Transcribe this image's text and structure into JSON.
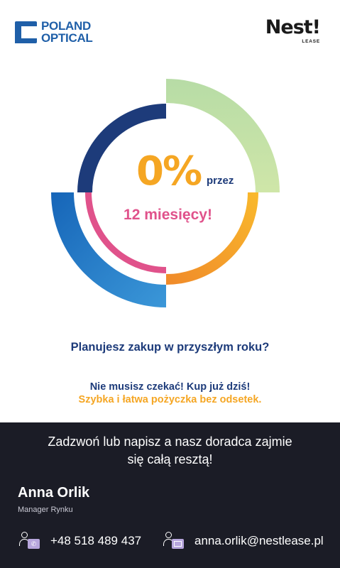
{
  "brand_left": {
    "line1": "POLAND",
    "line2": "OPTICAL",
    "color": "#1f5fa8"
  },
  "brand_right": {
    "name": "Nest!",
    "sub": "LEASE"
  },
  "promo": {
    "percent": "0%",
    "through": "przez",
    "period": "12 miesięcy!",
    "ring_colors": {
      "navy": "#1d3b7a",
      "green": "#c4e1a3",
      "blue": "#2a7fc6",
      "orange": "#f5a623",
      "pink": "#e0528b"
    }
  },
  "question": "Planujesz zakup w przyszłym roku?",
  "tagline_1": "Nie musisz czekać! Kup już dziś!",
  "tagline_2": "Szybka i łatwa pożyczka bez odsetek.",
  "footer": {
    "cta_line1": "Zadzwoń lub napisz a nasz doradca zajmie",
    "cta_line2": "się całą resztą!",
    "name": "Anna Orlik",
    "role": "Manager Rynku",
    "phone": "+48 518 489 437",
    "email": "anna.orlik@nestlease.pl",
    "background": "#1b1c26"
  }
}
